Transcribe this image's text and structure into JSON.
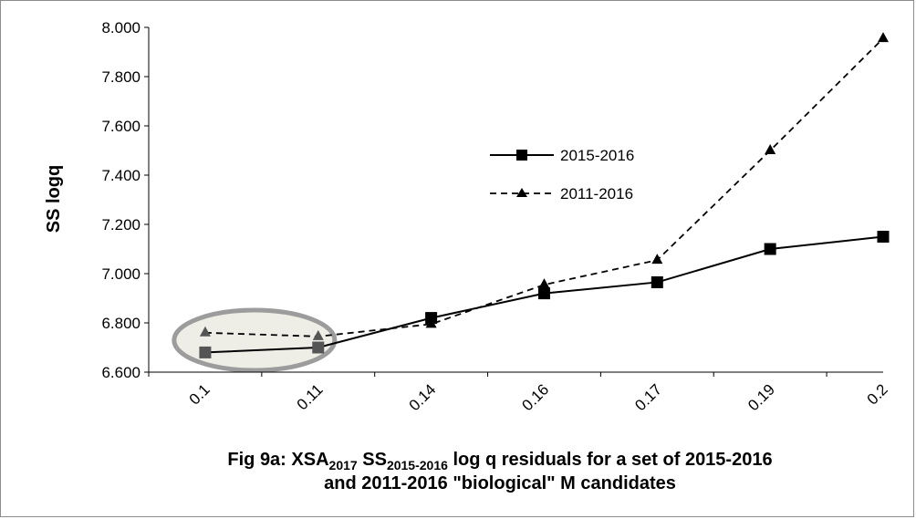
{
  "chart_data": {
    "type": "line",
    "categories": [
      "0.1",
      "0.11",
      "0.14",
      "0.16",
      "0.17",
      "0.19",
      "0.2"
    ],
    "series": [
      {
        "name": "2015-2016",
        "values": [
          6.68,
          6.7,
          6.82,
          6.92,
          6.965,
          7.1,
          7.15
        ],
        "color": "#000000",
        "marker": "square",
        "line": "solid"
      },
      {
        "name": "2011-2016",
        "values": [
          6.76,
          6.745,
          6.795,
          6.955,
          7.055,
          7.5,
          7.955
        ],
        "color": "#000000",
        "marker": "triangle",
        "line": "dashed"
      }
    ],
    "ylabel": "SS logq",
    "xlabel": "",
    "ylim": [
      6.6,
      8.0
    ],
    "yticks": [
      "6.600",
      "6.800",
      "7.000",
      "7.200",
      "7.400",
      "7.600",
      "7.800",
      "8.000"
    ],
    "grid": false,
    "legend_position": "center",
    "highlight": {
      "shape": "ellipse",
      "categories": [
        "0.1",
        "0.11"
      ],
      "fill": "#efeee6",
      "stroke": "#9c9c9c"
    },
    "caption": {
      "prefix": "Fig 9a: XSA",
      "sub1": "2017",
      "mid": " SS",
      "sub2": "2015-2016",
      "suffix": " log q residuals for a set of 2015-2016",
      "line2": "and 2011-2016  \"biological\" M candidates"
    }
  }
}
